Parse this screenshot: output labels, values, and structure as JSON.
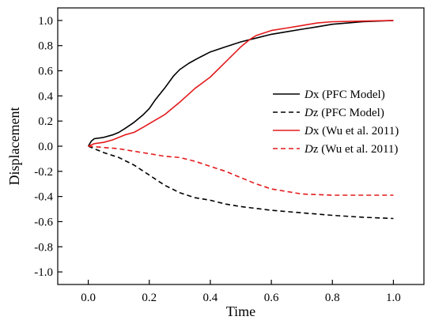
{
  "chart_data": {
    "type": "line",
    "xlabel": "Time",
    "ylabel": "Displacement",
    "xlim": [
      -0.1,
      1.1
    ],
    "ylim": [
      -1.1,
      1.1
    ],
    "x_ticks": [
      0.0,
      0.2,
      0.4,
      0.6,
      0.8,
      1.0
    ],
    "x_tick_labels": [
      "0.0",
      "0.2",
      "0.4",
      "0.6",
      "0.8",
      "1.0"
    ],
    "y_ticks": [
      1.0,
      0.8,
      0.6,
      0.4,
      0.2,
      0.0,
      -0.2,
      -0.4,
      -0.6,
      -0.8,
      -1.0
    ],
    "y_tick_labels": [
      "1.0",
      "0.8",
      "0.6",
      "0.4",
      "0.2",
      "0.0",
      "-0.2",
      "-0.4",
      "-0.6",
      "-0.8",
      "-1.0"
    ],
    "grid": false,
    "legend_position": "center-right",
    "series": [
      {
        "name_italic": "D",
        "name_rest": "x (PFC Model)",
        "color": "#000000",
        "dash": "solid",
        "x": [
          0.0,
          0.01,
          0.02,
          0.05,
          0.08,
          0.1,
          0.12,
          0.15,
          0.18,
          0.2,
          0.22,
          0.25,
          0.28,
          0.3,
          0.33,
          0.36,
          0.4,
          0.45,
          0.5,
          0.55,
          0.6,
          0.65,
          0.7,
          0.75,
          0.8,
          0.85,
          0.9,
          0.95,
          1.0
        ],
        "y": [
          0.0,
          0.04,
          0.06,
          0.07,
          0.09,
          0.11,
          0.14,
          0.19,
          0.25,
          0.3,
          0.37,
          0.46,
          0.56,
          0.61,
          0.66,
          0.7,
          0.75,
          0.79,
          0.83,
          0.86,
          0.89,
          0.91,
          0.93,
          0.95,
          0.97,
          0.98,
          0.99,
          0.995,
          1.0
        ]
      },
      {
        "name_italic": "D",
        "name_rest": "z (PFC Model)",
        "color": "#000000",
        "dash": "dashed",
        "x": [
          0.0,
          0.05,
          0.1,
          0.15,
          0.2,
          0.25,
          0.3,
          0.35,
          0.4,
          0.45,
          0.5,
          0.6,
          0.7,
          0.8,
          0.9,
          1.0
        ],
        "y": [
          0.0,
          -0.05,
          -0.09,
          -0.15,
          -0.23,
          -0.31,
          -0.37,
          -0.41,
          -0.43,
          -0.46,
          -0.48,
          -0.51,
          -0.53,
          -0.55,
          -0.565,
          -0.575
        ]
      },
      {
        "name_italic": "D",
        "name_rest": "x (Wu et al. 2011)",
        "color": "#e41a1c",
        "dash": "solid",
        "x": [
          0.0,
          0.02,
          0.05,
          0.08,
          0.1,
          0.12,
          0.15,
          0.18,
          0.2,
          0.25,
          0.3,
          0.35,
          0.4,
          0.45,
          0.5,
          0.53,
          0.55,
          0.6,
          0.65,
          0.7,
          0.75,
          0.8,
          0.9,
          1.0
        ],
        "y": [
          0.0,
          0.02,
          0.03,
          0.05,
          0.07,
          0.09,
          0.11,
          0.15,
          0.18,
          0.25,
          0.35,
          0.46,
          0.55,
          0.67,
          0.79,
          0.85,
          0.88,
          0.92,
          0.94,
          0.96,
          0.98,
          0.99,
          0.995,
          1.0
        ]
      },
      {
        "name_italic": "D",
        "name_rest": "z (Wu et al. 2011)",
        "color": "#e41a1c",
        "dash": "dashed",
        "x": [
          0.0,
          0.05,
          0.1,
          0.15,
          0.2,
          0.25,
          0.3,
          0.35,
          0.4,
          0.45,
          0.5,
          0.55,
          0.6,
          0.7,
          0.8,
          0.9,
          1.0
        ],
        "y": [
          0.0,
          -0.01,
          -0.02,
          -0.04,
          -0.06,
          -0.08,
          -0.09,
          -0.12,
          -0.16,
          -0.2,
          -0.25,
          -0.3,
          -0.34,
          -0.38,
          -0.39,
          -0.39,
          -0.39
        ]
      }
    ]
  }
}
